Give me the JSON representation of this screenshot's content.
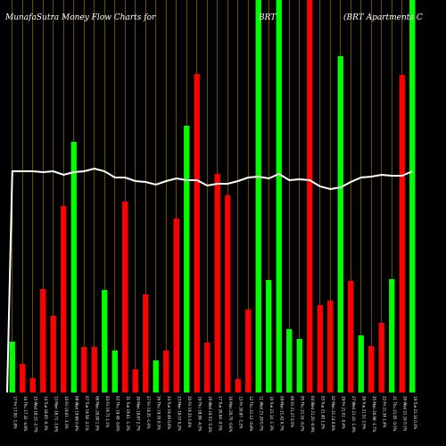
{
  "header": {
    "left": "MunafaSutra  Money Flow  Charts for",
    "center": "BRT",
    "right": "(BRT Apartments C"
  },
  "chart_data": {
    "type": "bar",
    "ylim": [
      0,
      440
    ],
    "colors": {
      "up": "#00ff00",
      "down": "#ff0000",
      "line": "#ffffff",
      "grid": "#b8860b",
      "background": "#000000"
    },
    "categories": [
      "Fri 17 Jan 2025",
      "Thu 16 Jan 2025",
      "Wed 15 Jan 2025",
      "Tue 14 Jan 2025",
      "Mon 13 Jan 2025",
      "Fri 10 Jan 2025",
      "Wed 08 Jan 2025",
      "Tue 07 Jan 2025",
      "Mon 06 Jan 2025",
      "Fri 03 Jan 2025",
      "Thu 02 Jan 2025",
      "Tue 31 Dec 2024",
      "Mon 30 Dec 2024",
      "Fri 27 Dec 2024",
      "Thu 26 Dec 2024",
      "Tue 24 Dec 2024",
      "Mon 23 Dec 2024",
      "Fri 20 Dec 2024",
      "Thu 19 Dec 2024",
      "Wed 18 Dec 2024",
      "Tue 17 Dec 2024",
      "Mon 16 Dec 2024",
      "Fri 13 Dec 2024",
      "Thu 12 Dec 2024",
      "Wed 11 Dec 2024",
      "Tue 10 Dec 2024",
      "Mon 09 Dec 2024",
      "Fri 06 Dec 2024",
      "Thu 05 Dec 2024",
      "Wed 04 Dec 2024",
      "Tue 03 Dec 2024",
      "Mon 02 Dec 2024",
      "Fri 29 Nov 2024",
      "Wed 27 Nov 2024",
      "Tue 26 Nov 2024",
      "Mon 25 Nov 2024",
      "Fri 22 Nov 2024",
      "Thu 21 Nov 2024",
      "Wed 20 Nov 2024",
      "Tue 19 Nov 2024"
    ],
    "tick_labels": [
      "17 Fri 17.00 -1.8%",
      "16 Thu 17.32 -4.9%",
      "15 Wed 18.15 -2.7%",
      "14 Tue 18.65 -0.3%",
      "13 Mon 18.71 -1.6%",
      "10 Fri 19.01 -3.3%",
      "08 Wed 19.66 0.4%",
      "07 Tue 19.58 -2.1%",
      "06 Mon 20.00 1.5%",
      "03 Fri 19.71 1.1%",
      "02 Thu 19.49 -0.6%",
      "31 Tue 19.61 -1.3%",
      "30 Mon 19.87 2.7%",
      "27 Fri 19.35 -1.0%",
      "26 Thu 19.55 0.3%",
      "24 Tue 19.49 0.6%",
      "23 Mon 19.37 0.2%",
      "20 Fri 19.33 3.4%",
      "19 Thu 18.69 -4.3%",
      "18 Wed 19.53 -5.4%",
      "17 Tue 20.64 -0.5%",
      "16 Mon 20.75 -0.6%",
      "13 Fri 20.87 -1.2%",
      "12 Thu 21.12 -0.8%",
      "11 Wed 21.29 0.7%",
      "10 Tue 21.14 -1.3%",
      "09 Mon 21.42 0.7%",
      "06 Fri 21.27 0.5%",
      "05 Thu 21.16 -0.2%",
      "04 Wed 21.20 -0.9%",
      "03 Tue 21.40 1.2%",
      "02 Mon 21.14 0.6%",
      "29 Fri 21.01 -0.4%",
      "27 Wed 21.10 -1.9%",
      "26 Tue 21.51 2.5%",
      "25 Mon 20.98 -1.7%",
      "22 Fri 21.34 1.4%",
      "21 Thu 21.05 -0.5%",
      "20 Wed 21.16 0.1%",
      "19 Tue 21.14 0.3%"
    ],
    "series": [
      {
        "values": [
          57,
          32,
          16,
          116,
          86,
          209,
          281,
          51,
          51,
          115,
          47,
          214,
          26,
          110,
          36,
          47,
          195,
          299,
          357,
          56,
          245,
          221,
          15,
          93,
          440,
          126,
          440,
          71,
          60,
          440,
          98,
          103,
          377,
          125,
          64,
          52,
          78,
          127,
          356,
          440
        ],
        "directions": [
          "up",
          "down",
          "down",
          "down",
          "down",
          "down",
          "up",
          "down",
          "down",
          "up",
          "up",
          "down",
          "down",
          "down",
          "up",
          "down",
          "down",
          "up",
          "down",
          "down",
          "down",
          "down",
          "down",
          "down",
          "up",
          "up",
          "up",
          "up",
          "up",
          "down",
          "down",
          "down",
          "up",
          "down",
          "up",
          "down",
          "down",
          "up",
          "down",
          "up"
        ],
        "line": [
          248,
          248,
          248,
          247,
          248,
          244,
          247,
          248,
          251,
          248,
          241,
          241,
          237,
          236,
          233,
          237,
          240,
          238,
          238,
          232,
          234,
          234,
          237,
          241,
          242,
          240,
          245,
          238,
          239,
          238,
          231,
          228,
          230,
          236,
          241,
          242,
          244,
          243,
          243,
          248
        ]
      }
    ]
  }
}
